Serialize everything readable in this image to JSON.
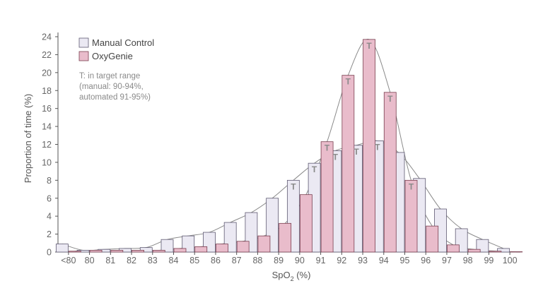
{
  "colors": {
    "manual_fill": "#ebe9f3",
    "manual_stroke": "#5f5a72",
    "oxy_fill": "#e9bccb",
    "oxy_stroke": "#7a3f50",
    "axis": "#555555",
    "text": "#666666",
    "curve": "#8a8a8a",
    "marker": "#8a8a8a"
  },
  "chart_data": {
    "type": "bar",
    "title": "",
    "xlabel": "SpO",
    "xlabel_sub": "2",
    "xlabel_suffix": " (%)",
    "ylabel": "Proportion of time (%)",
    "ylim": [
      0,
      24
    ],
    "yticks": [
      0,
      2,
      4,
      6,
      8,
      10,
      12,
      14,
      16,
      18,
      20,
      22,
      24
    ],
    "categories": [
      "<80",
      "80",
      "81",
      "82",
      "83",
      "84",
      "85",
      "86",
      "87",
      "88",
      "89",
      "90",
      "91",
      "92",
      "93",
      "94",
      "95",
      "96",
      "97",
      "98",
      "99",
      "100"
    ],
    "series": [
      {
        "name": "Manual Control",
        "values": [
          0.9,
          0.2,
          0.3,
          0.4,
          0.5,
          1.4,
          1.8,
          2.2,
          3.3,
          4.4,
          6.0,
          8.0,
          9.9,
          11.3,
          11.9,
          12.4,
          11.1,
          8.2,
          4.8,
          2.6,
          1.4,
          0.4
        ],
        "target": [
          false,
          false,
          false,
          false,
          false,
          false,
          false,
          false,
          false,
          false,
          false,
          true,
          true,
          true,
          true,
          true,
          false,
          false,
          false,
          false,
          false,
          false
        ]
      },
      {
        "name": "OxyGenie",
        "values": [
          0.1,
          0.2,
          0.2,
          0.2,
          0.2,
          0.4,
          0.6,
          0.9,
          1.2,
          1.8,
          3.2,
          6.4,
          12.3,
          19.7,
          23.7,
          17.8,
          8.0,
          2.9,
          0.8,
          0.3,
          0.1,
          0.0
        ],
        "target": [
          false,
          false,
          false,
          false,
          false,
          false,
          false,
          false,
          false,
          false,
          false,
          false,
          true,
          true,
          true,
          true,
          true,
          false,
          false,
          false,
          false,
          false
        ]
      }
    ],
    "legend": {
      "position": "top-left",
      "entries": [
        "Manual Control",
        "OxyGenie"
      ],
      "note_lines": [
        "T: in target range",
        "(manual: 90-94%,",
        "automated 91-95%)"
      ]
    },
    "target_marker": "T"
  }
}
